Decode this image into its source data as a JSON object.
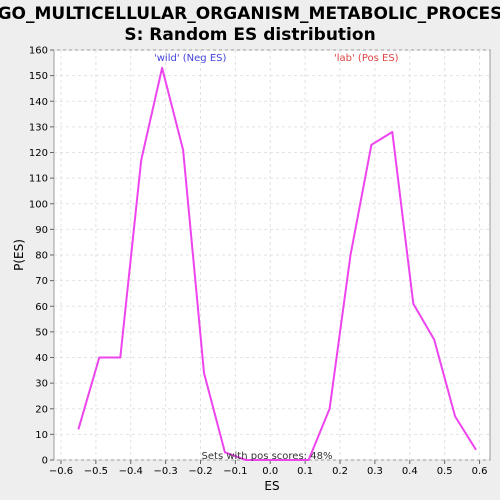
{
  "chart_data": {
    "type": "line",
    "title_line1": "GO_MULTICELLULAR_ORGANISM_METABOLIC_PROCES",
    "title_line2": "S: Random ES distribution",
    "xlabel": "ES",
    "ylabel": "P(ES)",
    "xlim": [
      -0.62,
      0.63
    ],
    "ylim": [
      0,
      160
    ],
    "xticks": [
      -0.6,
      -0.5,
      -0.4,
      -0.3,
      -0.2,
      -0.1,
      0.0,
      0.1,
      0.2,
      0.3,
      0.4,
      0.5,
      0.6
    ],
    "xtick_labels": [
      "−0.6",
      "−0.5",
      "−0.4",
      "−0.3",
      "−0.2",
      "−0.1",
      "0.0",
      "0.1",
      "0.2",
      "0.3",
      "0.4",
      "0.5",
      "0.6"
    ],
    "yticks": [
      0,
      10,
      20,
      30,
      40,
      50,
      60,
      70,
      80,
      90,
      100,
      110,
      120,
      130,
      140,
      150,
      160
    ],
    "grid": true,
    "line_color": "#ee44ee",
    "x": [
      -0.55,
      -0.49,
      -0.43,
      -0.37,
      -0.31,
      -0.25,
      -0.19,
      -0.13,
      -0.07,
      -0.01,
      0.05,
      0.11,
      0.17,
      0.23,
      0.29,
      0.35,
      0.41,
      0.47,
      0.53,
      0.59
    ],
    "y": [
      12,
      40,
      40,
      117,
      153,
      121,
      34,
      3,
      0,
      0,
      0,
      0,
      20,
      80,
      123,
      128,
      61,
      47,
      17,
      4
    ],
    "annotations": {
      "neg": {
        "text": "'wild' (Neg ES)",
        "color": "#4444dd"
      },
      "pos": {
        "text": "'lab' (Pos ES)",
        "color": "#dd4444"
      },
      "footer": {
        "text": "Sets with pos scores: 48%",
        "color": "#333333"
      }
    }
  }
}
